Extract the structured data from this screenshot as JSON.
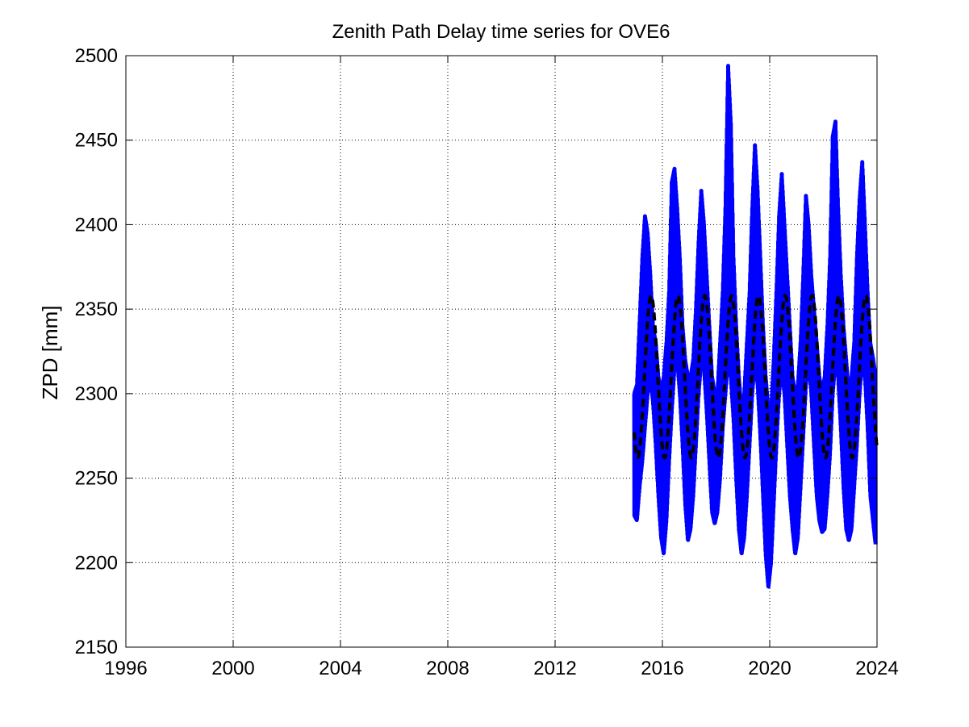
{
  "chart_data": {
    "type": "line",
    "title": "Zenith Path Delay time series for OVE6",
    "xlabel": "",
    "ylabel": "ZPD [mm]",
    "xlim": [
      1996,
      2024
    ],
    "ylim": [
      2150,
      2500
    ],
    "xticks": [
      1996,
      2000,
      2004,
      2008,
      2012,
      2016,
      2020,
      2024
    ],
    "yticks": [
      2150,
      2200,
      2250,
      2300,
      2350,
      2400,
      2450,
      2500
    ],
    "grid": true,
    "series": [
      {
        "style": "solid",
        "color": "#0000ff",
        "x": [
          2014.95,
          2015.05,
          2015.15,
          2015.25,
          2015.35,
          2015.45,
          2015.55,
          2015.65,
          2015.75,
          2015.85,
          2015.95,
          2016.05,
          2016.15,
          2016.25,
          2016.35,
          2016.45,
          2016.55,
          2016.65,
          2016.75,
          2016.85,
          2016.95,
          2017.05,
          2017.15,
          2017.25,
          2017.35,
          2017.45,
          2017.55,
          2017.65,
          2017.75,
          2017.85,
          2017.95,
          2018.05,
          2018.15,
          2018.25,
          2018.35,
          2018.45,
          2018.55,
          2018.65,
          2018.75,
          2018.85,
          2018.95,
          2019.05,
          2019.15,
          2019.25,
          2019.35,
          2019.45,
          2019.55,
          2019.65,
          2019.75,
          2019.85,
          2019.95,
          2020.05,
          2020.15,
          2020.25,
          2020.35,
          2020.45,
          2020.55,
          2020.65,
          2020.75,
          2020.85,
          2020.95,
          2021.05,
          2021.15,
          2021.25,
          2021.35,
          2021.45,
          2021.55,
          2021.65,
          2021.75,
          2021.85,
          2021.95,
          2022.05,
          2022.15,
          2022.25,
          2022.35,
          2022.45,
          2022.55,
          2022.65,
          2022.75,
          2022.85,
          2022.95,
          2023.05,
          2023.15,
          2023.25,
          2023.35,
          2023.45,
          2023.55,
          2023.65,
          2023.75,
          2023.85,
          2023.95
        ],
        "y_min": [
          2228,
          2225,
          2245,
          2260,
          2280,
          2300,
          2310,
          2295,
          2270,
          2240,
          2215,
          2205,
          2225,
          2260,
          2290,
          2315,
          2320,
          2300,
          2270,
          2235,
          2213,
          2220,
          2240,
          2270,
          2300,
          2320,
          2315,
          2290,
          2260,
          2230,
          2223,
          2230,
          2250,
          2280,
          2300,
          2320,
          2310,
          2285,
          2250,
          2220,
          2205,
          2215,
          2240,
          2270,
          2300,
          2320,
          2305,
          2275,
          2240,
          2205,
          2185,
          2200,
          2235,
          2270,
          2300,
          2315,
          2300,
          2270,
          2240,
          2220,
          2205,
          2215,
          2245,
          2275,
          2305,
          2320,
          2300,
          2270,
          2240,
          2225,
          2218,
          2220,
          2240,
          2265,
          2300,
          2320,
          2310,
          2280,
          2245,
          2220,
          2213,
          2220,
          2245,
          2270,
          2300,
          2320,
          2310,
          2280,
          2240,
          2225,
          2210
        ],
        "y_max": [
          2300,
          2305,
          2342,
          2380,
          2405,
          2395,
          2370,
          2340,
          2330,
          2310,
          2300,
          2310,
          2330,
          2360,
          2425,
          2433,
          2410,
          2380,
          2340,
          2320,
          2310,
          2310,
          2320,
          2350,
          2390,
          2420,
          2400,
          2370,
          2340,
          2310,
          2300,
          2300,
          2330,
          2360,
          2410,
          2494,
          2460,
          2380,
          2340,
          2310,
          2290,
          2300,
          2330,
          2360,
          2410,
          2447,
          2420,
          2380,
          2340,
          2310,
          2290,
          2290,
          2320,
          2360,
          2405,
          2430,
          2400,
          2370,
          2340,
          2310,
          2300,
          2305,
          2330,
          2370,
          2417,
          2400,
          2370,
          2350,
          2330,
          2310,
          2300,
          2310,
          2340,
          2380,
          2452,
          2461,
          2410,
          2370,
          2340,
          2320,
          2300,
          2310,
          2330,
          2380,
          2415,
          2437,
          2400,
          2360,
          2330,
          2321,
          2310
        ]
      },
      {
        "style": "dashed",
        "color": "#000000",
        "mean": 2310,
        "amplitude": 48,
        "period_years": 1,
        "peak_phase": 0.58,
        "x_start": 2014.95,
        "x_end": 2024
      }
    ]
  }
}
